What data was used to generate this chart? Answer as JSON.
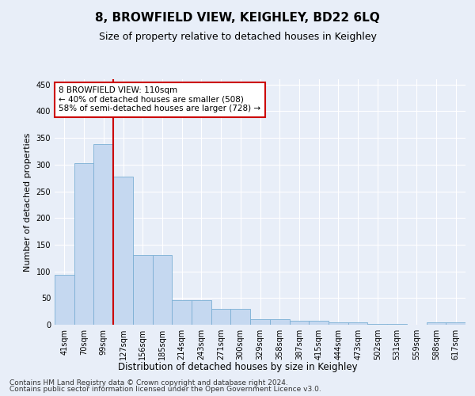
{
  "title": "8, BROWFIELD VIEW, KEIGHLEY, BD22 6LQ",
  "subtitle": "Size of property relative to detached houses in Keighley",
  "xlabel": "Distribution of detached houses by size in Keighley",
  "ylabel": "Number of detached properties",
  "categories": [
    "41sqm",
    "70sqm",
    "99sqm",
    "127sqm",
    "156sqm",
    "185sqm",
    "214sqm",
    "243sqm",
    "271sqm",
    "300sqm",
    "329sqm",
    "358sqm",
    "387sqm",
    "415sqm",
    "444sqm",
    "473sqm",
    "502sqm",
    "531sqm",
    "559sqm",
    "588sqm",
    "617sqm"
  ],
  "values": [
    93,
    303,
    338,
    278,
    131,
    131,
    46,
    46,
    30,
    30,
    10,
    10,
    8,
    7,
    4,
    4,
    1,
    1,
    0,
    4,
    4
  ],
  "bar_color": "#c5d8f0",
  "bar_edge_color": "#7bafd4",
  "vline_x_index": 2,
  "vline_color": "#cc0000",
  "annotation_text": "8 BROWFIELD VIEW: 110sqm\n← 40% of detached houses are smaller (508)\n58% of semi-detached houses are larger (728) →",
  "annotation_box_color": "#ffffff",
  "annotation_box_edge": "#cc0000",
  "ylim": [
    0,
    460
  ],
  "yticks": [
    0,
    50,
    100,
    150,
    200,
    250,
    300,
    350,
    400,
    450
  ],
  "footer_line1": "Contains HM Land Registry data © Crown copyright and database right 2024.",
  "footer_line2": "Contains public sector information licensed under the Open Government Licence v3.0.",
  "background_color": "#e8eef8",
  "plot_bg_color": "#e8eef8",
  "grid_color": "#ffffff",
  "title_fontsize": 11,
  "subtitle_fontsize": 9,
  "axis_label_fontsize": 8,
  "tick_fontsize": 7,
  "footer_fontsize": 6.5
}
